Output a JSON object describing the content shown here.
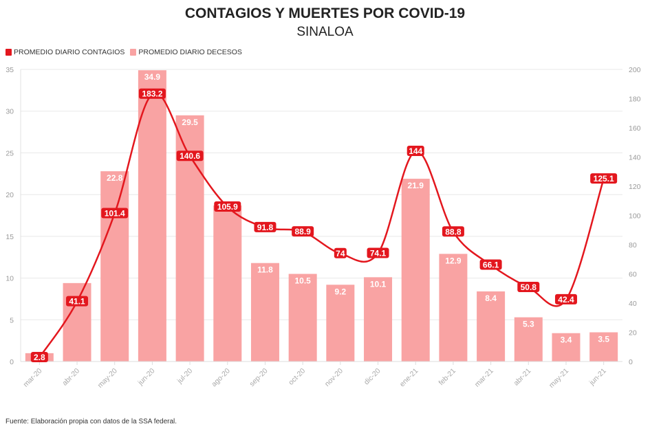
{
  "chart_data": {
    "type": "bar+line",
    "title": "CONTAGIOS Y MUERTES POR COVID-19",
    "subtitle": "SINALOA",
    "source": "Fuente: Elaboración propia con datos de la SSA federal.",
    "categories": [
      "mar-20",
      "abr-20",
      "may-20",
      "jun-20",
      "jul-20",
      "ago-20",
      "sep-20",
      "oct-20",
      "nov-20",
      "dic-20",
      "ene-21",
      "feb-21",
      "mar-21",
      "abr-21",
      "may-21",
      "jun-21"
    ],
    "series": [
      {
        "name": "PROMEDIO DIARIO CONTAGIOS",
        "type": "line",
        "axis": "right",
        "color": "#e3171e",
        "values": [
          2.8,
          41.1,
          101.4,
          183.2,
          140.6,
          105.9,
          91.8,
          88.9,
          74,
          74.1,
          144,
          88.8,
          66.1,
          50.8,
          42.4,
          125.1
        ]
      },
      {
        "name": "PROMEDIO DIARIO DECESOS",
        "type": "bar",
        "axis": "left",
        "color": "#f9a3a3",
        "values": [
          1.0,
          9.4,
          22.8,
          34.9,
          29.5,
          18.7,
          11.8,
          10.5,
          9.2,
          10.1,
          21.9,
          12.9,
          8.4,
          5.3,
          3.4,
          3.5
        ],
        "labels": [
          "",
          "",
          "22.8",
          "34.9",
          "29.5",
          "",
          "11.8",
          "10.5",
          "9.2",
          "10.1",
          "21.9",
          "12.9",
          "8.4",
          "5.3",
          "3.4",
          "3.5"
        ]
      }
    ],
    "y_left": {
      "range": [
        0,
        35
      ],
      "ticks": [
        "0",
        "5",
        "10",
        "15",
        "20",
        "25",
        "30",
        "35"
      ]
    },
    "y_right": {
      "range": [
        0,
        200
      ],
      "ticks": [
        "0",
        "20",
        "40",
        "60",
        "80",
        "100",
        "120",
        "140",
        "160",
        "180",
        "200"
      ]
    },
    "grid": true,
    "legend": "top-left"
  }
}
